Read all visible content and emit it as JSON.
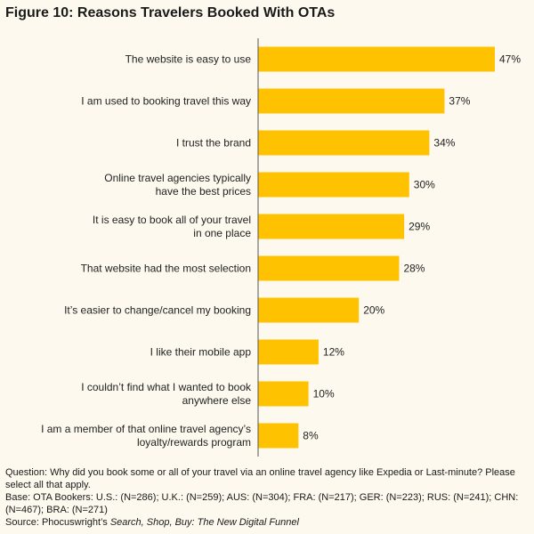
{
  "figure_title": "Figure 10: Reasons Travelers Booked With OTAs",
  "chart_data": {
    "type": "bar",
    "orientation": "horizontal",
    "categories": [
      [
        "The website is easy to use"
      ],
      [
        "I am used to booking travel this way"
      ],
      [
        "I trust the brand"
      ],
      [
        "Online travel agencies typically",
        "have the best prices"
      ],
      [
        "It is easy to book all of your travel",
        "in one place"
      ],
      [
        "That website had the most selection"
      ],
      [
        "It’s easier to change/cancel my booking"
      ],
      [
        "I like their mobile app"
      ],
      [
        "I couldn’t find what I wanted to book",
        "anywhere else"
      ],
      [
        "I am a member of that online travel agency’s",
        "loyalty/rewards program"
      ]
    ],
    "values": [
      47,
      37,
      34,
      30,
      29,
      28,
      20,
      12,
      10,
      8
    ],
    "value_labels": [
      "47%",
      "37%",
      "34%",
      "30%",
      "29%",
      "28%",
      "20%",
      "12%",
      "10%",
      "8%"
    ],
    "xlim": [
      0,
      47
    ],
    "grid": false,
    "bar_color": "#ffc200",
    "axis_color": "#555555"
  },
  "notes": {
    "question": "Question: Why did you book some or all of your travel via an online travel agency like Expedia or Last-minute? Please select all that apply.",
    "base": "Base: OTA Bookers: U.S.: (N=286); U.K.: (N=259); AUS: (N=304); FRA: (N=217); GER: (N=223); RUS: (N=241); CHN: (N=467); BRA: (N=271)",
    "source_prefix": "Source: Phocuswright’s ",
    "source_title": "Search, Shop, Buy: The New Digital Funnel"
  }
}
